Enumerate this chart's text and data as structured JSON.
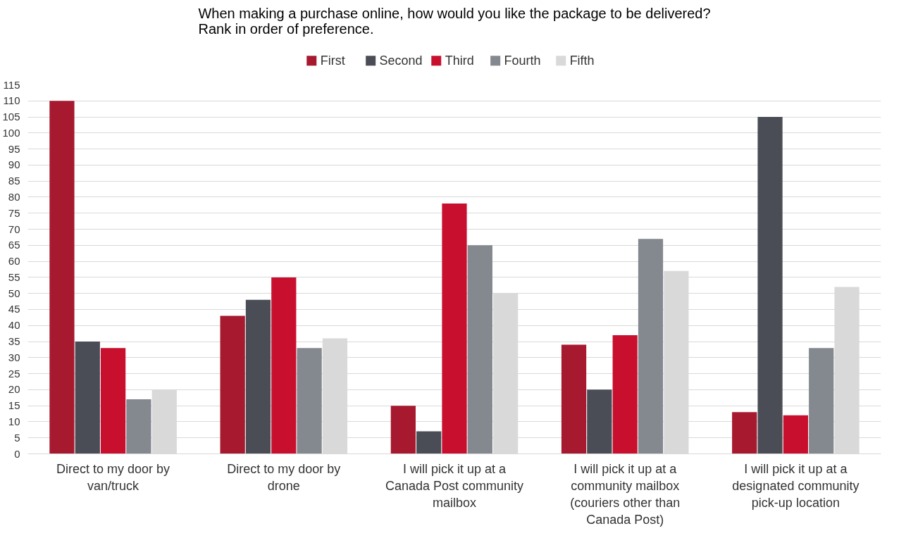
{
  "chart_data": {
    "type": "bar",
    "title": "When making a purchase online, how would you like the package to be delivered? Rank in order of preference.",
    "categories": [
      "Direct to my door by van/truck",
      "Direct to my door by drone",
      "I will pick it up at a Canada Post community mailbox",
      "I will pick it up at a community mailbox (couriers other than Canada Post)",
      "I will pick it up at a designated community pick-up location"
    ],
    "series": [
      {
        "name": "First",
        "color": "#a6192e",
        "values": [
          110,
          43,
          15,
          34,
          13
        ]
      },
      {
        "name": "Second",
        "color": "#4a4d55",
        "values": [
          35,
          48,
          7,
          20,
          105
        ]
      },
      {
        "name": "Third",
        "color": "#c8102e",
        "values": [
          33,
          55,
          78,
          37,
          12
        ]
      },
      {
        "name": "Fourth",
        "color": "#84888f",
        "values": [
          17,
          33,
          65,
          67,
          33
        ]
      },
      {
        "name": "Fifth",
        "color": "#d9d9da",
        "values": [
          20,
          36,
          50,
          57,
          52
        ]
      }
    ],
    "ylim": [
      0,
      115
    ],
    "yticks": [
      0,
      5,
      10,
      15,
      20,
      25,
      30,
      35,
      40,
      45,
      50,
      55,
      60,
      65,
      70,
      75,
      80,
      85,
      90,
      95,
      100,
      105,
      110,
      115
    ],
    "grid": "y",
    "legend": "top"
  }
}
